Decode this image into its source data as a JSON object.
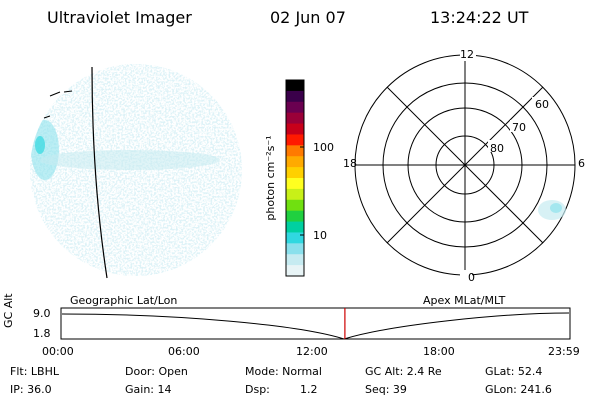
{
  "header": {
    "title": "Ultraviolet Imager",
    "date": "02 Jun 07",
    "time": "13:24:22 UT"
  },
  "colorbar": {
    "unit_label": "photon cm⁻²s⁻¹",
    "tick_labels": [
      "100",
      "10"
    ],
    "colors": [
      "#000000",
      "#3a004a",
      "#6a0050",
      "#9a0038",
      "#c8001a",
      "#ff1a00",
      "#ff7a00",
      "#ffaa00",
      "#ffd000",
      "#ffff20",
      "#c8f018",
      "#70e010",
      "#20d040",
      "#00d0a0",
      "#30d8e0",
      "#8ae0ec",
      "#c6ebf1",
      "#e8f4f6"
    ]
  },
  "polar_plot": {
    "mlt_labels": {
      "top": "12",
      "bottom": "0",
      "left": "18",
      "right": "6"
    },
    "lat_labels": [
      "60",
      "70",
      "80"
    ]
  },
  "timeline": {
    "left_label": "Geographic Lat/Lon",
    "right_label": "Apex MLat/MLT",
    "axis_label": "GC Alt",
    "y_ticks": [
      "9.0",
      "1.8"
    ],
    "x_ticks": [
      "00:00",
      "06:00",
      "12:00",
      "18:00",
      "23:59"
    ],
    "current_time_fraction": 0.558,
    "cursor_color": "#cc0000"
  },
  "info": {
    "filter": "Flt: LBHL",
    "door": "Door: Open",
    "mode": "Mode: Normal",
    "gc_alt": "GC Alt: 2.4 Re",
    "glat": "GLat:  52.4",
    "ip": "IP: 36.0",
    "gain": "Gain: 14",
    "dsp_label": "Dsp:",
    "dsp_value": "1.2",
    "seq": "Seq: 39",
    "glon": "GLon: 241.6"
  }
}
